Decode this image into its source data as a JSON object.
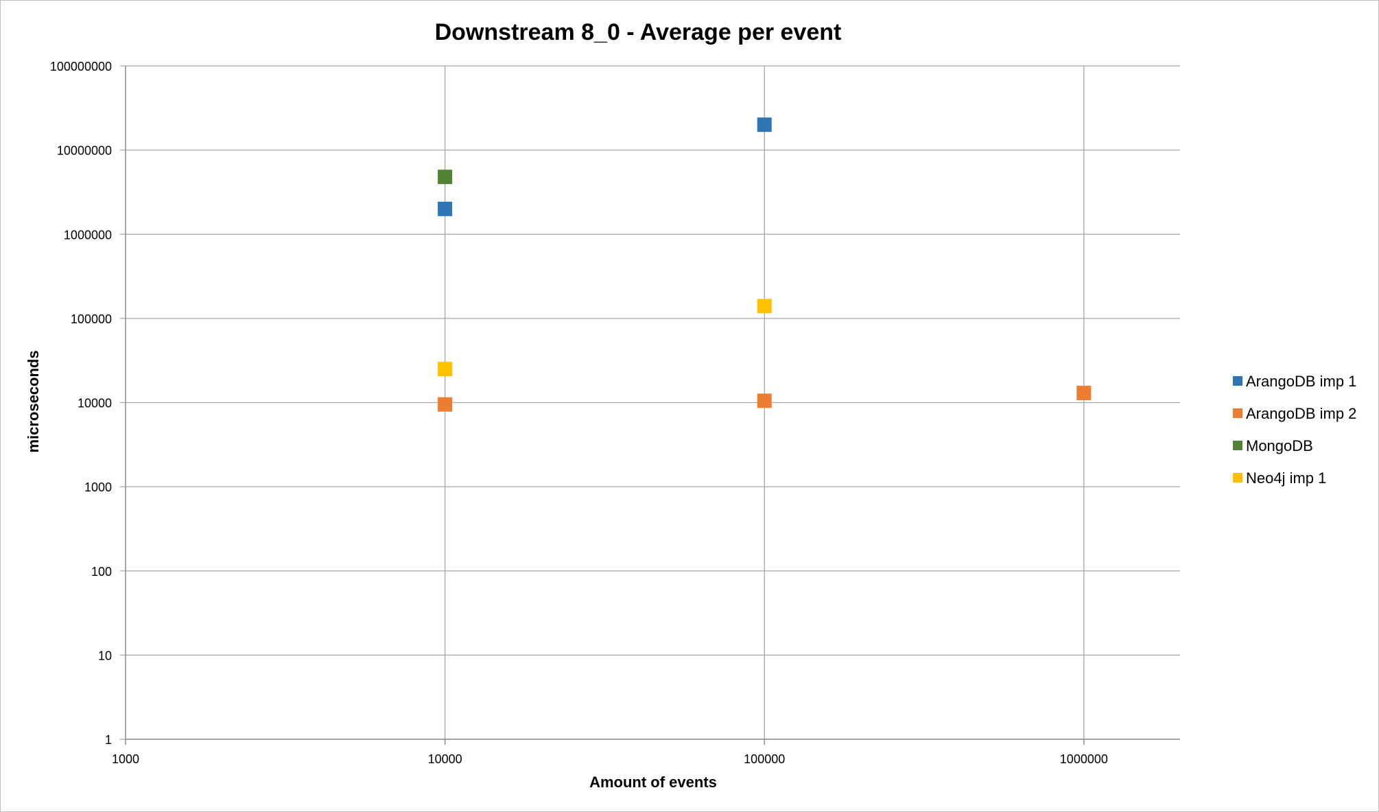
{
  "chart_data": {
    "type": "scatter",
    "title": "Downstream 8_0 - Average per event",
    "xlabel": "Amount of events",
    "ylabel": "microseconds",
    "x_scale": "log",
    "y_scale": "log",
    "xlim": [
      1000,
      2000000
    ],
    "ylim": [
      1,
      100000000
    ],
    "x_ticks": [
      "1000",
      "10000",
      "100000",
      "1000000"
    ],
    "y_ticks": [
      "1",
      "10",
      "100",
      "1000",
      "10000",
      "100000",
      "1000000",
      "10000000",
      "100000000"
    ],
    "grid": true,
    "legend_position": "right",
    "series": [
      {
        "name": "ArangoDB imp 1",
        "color": "#2e75b6",
        "points": [
          {
            "x": 10000,
            "y": 2000000
          },
          {
            "x": 100000,
            "y": 20000000
          }
        ]
      },
      {
        "name": "ArangoDB imp 2",
        "color": "#ed7d31",
        "points": [
          {
            "x": 10000,
            "y": 9500
          },
          {
            "x": 100000,
            "y": 10500
          },
          {
            "x": 1000000,
            "y": 13000
          }
        ]
      },
      {
        "name": "MongoDB",
        "color": "#548235",
        "points": [
          {
            "x": 10000,
            "y": 4800000
          }
        ]
      },
      {
        "name": "Neo4j imp 1",
        "color": "#ffc000",
        "points": [
          {
            "x": 10000,
            "y": 25000
          },
          {
            "x": 100000,
            "y": 140000
          }
        ]
      }
    ]
  }
}
